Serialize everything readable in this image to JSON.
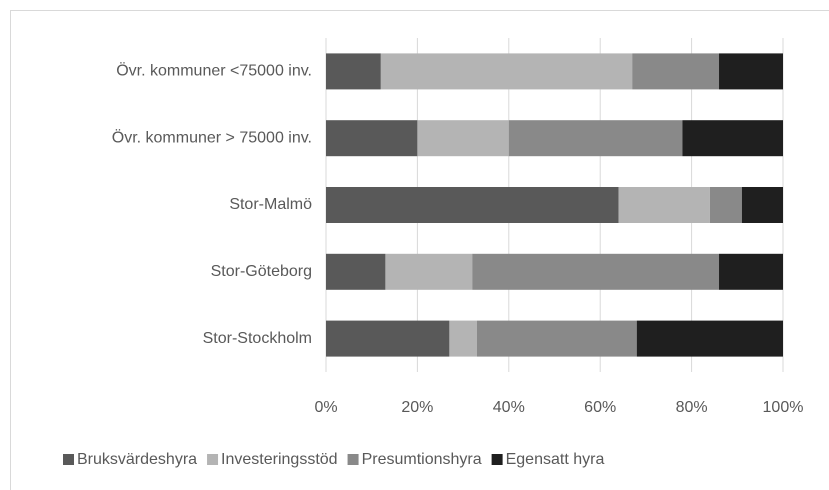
{
  "chart_data": {
    "type": "stacked_bar_horizontal",
    "categories": [
      "Övr. kommuner <75000 inv.",
      "Övr. kommuner > 75000 inv.",
      "Stor-Malmö",
      "Stor-Göteborg",
      "Stor-Stockholm"
    ],
    "series": [
      {
        "name": "Bruksvärdeshyra",
        "color": "#595959",
        "values": [
          12,
          20,
          64,
          13,
          27
        ]
      },
      {
        "name": "Investeringsstöd",
        "color": "#b4b4b4",
        "values": [
          55,
          20,
          20,
          19,
          6
        ]
      },
      {
        "name": "Presumtionshyra",
        "color": "#898989",
        "values": [
          19,
          38,
          7,
          54,
          35
        ]
      },
      {
        "name": "Egensatt hyra",
        "color": "#1f1f1f",
        "values": [
          14,
          22,
          9,
          14,
          32
        ]
      }
    ],
    "xlim": [
      0,
      100
    ],
    "xticks": [
      {
        "value": 0,
        "label": "0%"
      },
      {
        "value": 20,
        "label": "20%"
      },
      {
        "value": 40,
        "label": "40%"
      },
      {
        "value": 60,
        "label": "60%"
      },
      {
        "value": 80,
        "label": "80%"
      },
      {
        "value": 100,
        "label": "100%"
      }
    ],
    "grid": true,
    "legend": "bottom"
  }
}
